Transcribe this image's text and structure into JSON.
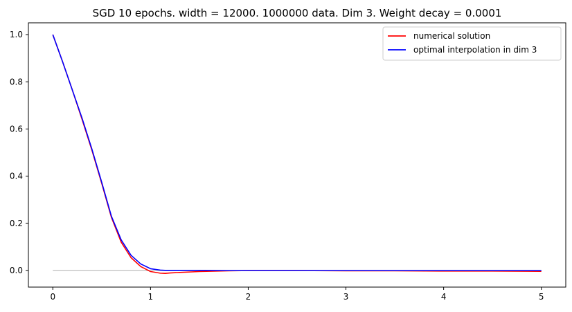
{
  "chart_data": {
    "type": "line",
    "title": "SGD 10 epochs. width = 12000. 1000000 data. Dim 3. Weight decay = 0.0001",
    "xlabel": "",
    "ylabel": "",
    "xlim": [
      -0.25,
      5.25
    ],
    "ylim": [
      -0.07,
      1.05
    ],
    "xticks": [
      0,
      1,
      2,
      3,
      4,
      5
    ],
    "xtick_labels": [
      "0",
      "1",
      "2",
      "3",
      "4",
      "5"
    ],
    "yticks": [
      0.0,
      0.2,
      0.4,
      0.6,
      0.8,
      1.0
    ],
    "ytick_labels": [
      "0.0",
      "0.2",
      "0.4",
      "0.6",
      "0.8",
      "1.0"
    ],
    "grid": false,
    "legend_position": "top-right",
    "reference_line": {
      "y": 0,
      "x_range": [
        0,
        5
      ],
      "color": "#c8c8c8"
    },
    "series": [
      {
        "name": "numerical solution",
        "color": "#ff0000",
        "x": [
          0,
          0.1,
          0.2,
          0.3,
          0.4,
          0.5,
          0.6,
          0.7,
          0.8,
          0.9,
          1.0,
          1.1,
          1.15,
          1.2,
          1.3,
          1.5,
          1.8,
          2.0,
          2.5,
          3.0,
          3.5,
          4.0,
          4.5,
          5.0
        ],
        "y": [
          1.0,
          0.885,
          0.765,
          0.64,
          0.51,
          0.37,
          0.225,
          0.12,
          0.055,
          0.017,
          -0.004,
          -0.011,
          -0.012,
          -0.01,
          -0.008,
          -0.004,
          -0.001,
          0.0,
          0.0,
          -0.001,
          -0.001,
          -0.002,
          -0.002,
          -0.003
        ]
      },
      {
        "name": "optimal interpolation in dim 3",
        "color": "#0000ff",
        "x": [
          0,
          0.1,
          0.2,
          0.3,
          0.4,
          0.5,
          0.6,
          0.7,
          0.8,
          0.9,
          1.0,
          1.1,
          1.15,
          1.2,
          1.3,
          1.5,
          1.8,
          2.0,
          2.5,
          3.0,
          3.5,
          4.0,
          4.5,
          5.0
        ],
        "y": [
          1.0,
          0.885,
          0.765,
          0.645,
          0.515,
          0.375,
          0.23,
          0.13,
          0.065,
          0.028,
          0.008,
          0.002,
          0.001,
          0.001,
          0.001,
          0.001,
          0.0,
          0.0,
          0.0,
          0.0,
          0.0,
          0.0,
          0.0,
          0.0
        ]
      }
    ]
  }
}
